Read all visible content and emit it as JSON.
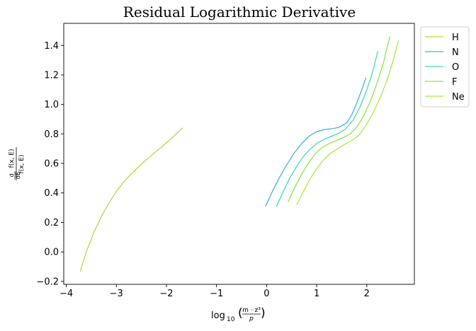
{
  "chart_data": {
    "type": "line",
    "title": "Residual Logarithmic Derivative",
    "xlabel": {
      "base": "log",
      "sub": "10",
      "num": "m · z³",
      "den": "p"
    },
    "ylabel": {
      "num": "d",
      "den": "dE",
      "func": "f(x, E)"
    },
    "xlim": [
      -4.05,
      2.95
    ],
    "ylim": [
      -0.22,
      1.55
    ],
    "xticks": [
      -4,
      -3,
      -2,
      -1,
      0,
      1,
      2
    ],
    "xtick_labels": [
      "−4",
      "−3",
      "−2",
      "−1",
      "0",
      "1",
      "2"
    ],
    "yticks": [
      -0.2,
      0.0,
      0.2,
      0.4,
      0.6,
      0.8,
      1.0,
      1.2,
      1.4
    ],
    "ytick_labels": [
      "−0.2",
      "0.0",
      "0.2",
      "0.4",
      "0.6",
      "0.8",
      "1.0",
      "1.2",
      "1.4"
    ],
    "grid": false,
    "legend_position": "outside-top-right",
    "series": [
      {
        "name": "H",
        "color": "#a6cc0e",
        "points": [
          [
            -3.72,
            -0.13
          ],
          [
            -3.6,
            0.0
          ],
          [
            -3.45,
            0.13
          ],
          [
            -3.3,
            0.24
          ],
          [
            -3.15,
            0.33
          ],
          [
            -3.0,
            0.41
          ],
          [
            -2.85,
            0.475
          ],
          [
            -2.7,
            0.53
          ],
          [
            -2.5,
            0.595
          ],
          [
            -2.3,
            0.655
          ],
          [
            -2.1,
            0.71
          ],
          [
            -1.9,
            0.77
          ],
          [
            -1.68,
            0.84
          ]
        ]
      },
      {
        "name": "N",
        "color": "#1a9ad6",
        "points": [
          [
            -0.02,
            0.31
          ],
          [
            0.1,
            0.4
          ],
          [
            0.25,
            0.5
          ],
          [
            0.4,
            0.59
          ],
          [
            0.55,
            0.67
          ],
          [
            0.7,
            0.735
          ],
          [
            0.85,
            0.785
          ],
          [
            1.0,
            0.815
          ],
          [
            1.15,
            0.83
          ],
          [
            1.3,
            0.835
          ],
          [
            1.45,
            0.845
          ],
          [
            1.6,
            0.875
          ],
          [
            1.7,
            0.93
          ],
          [
            1.8,
            1.01
          ],
          [
            1.9,
            1.1
          ],
          [
            1.98,
            1.18
          ]
        ]
      },
      {
        "name": "O",
        "color": "#14d1a4",
        "points": [
          [
            0.2,
            0.31
          ],
          [
            0.32,
            0.4
          ],
          [
            0.46,
            0.5
          ],
          [
            0.6,
            0.58
          ],
          [
            0.74,
            0.65
          ],
          [
            0.88,
            0.7
          ],
          [
            1.02,
            0.74
          ],
          [
            1.16,
            0.765
          ],
          [
            1.3,
            0.785
          ],
          [
            1.44,
            0.805
          ],
          [
            1.58,
            0.835
          ],
          [
            1.72,
            0.89
          ],
          [
            1.86,
            0.98
          ],
          [
            1.98,
            1.08
          ],
          [
            2.1,
            1.2
          ],
          [
            2.22,
            1.36
          ]
        ]
      },
      {
        "name": "F",
        "color": "#6ee01c",
        "points": [
          [
            0.43,
            0.34
          ],
          [
            0.55,
            0.43
          ],
          [
            0.69,
            0.52
          ],
          [
            0.83,
            0.6
          ],
          [
            0.97,
            0.665
          ],
          [
            1.11,
            0.71
          ],
          [
            1.25,
            0.735
          ],
          [
            1.39,
            0.755
          ],
          [
            1.53,
            0.775
          ],
          [
            1.67,
            0.8
          ],
          [
            1.81,
            0.85
          ],
          [
            1.95,
            0.93
          ],
          [
            2.08,
            1.03
          ],
          [
            2.2,
            1.14
          ],
          [
            2.33,
            1.28
          ],
          [
            2.46,
            1.46
          ]
        ]
      },
      {
        "name": "Ne",
        "color": "#90e614",
        "points": [
          [
            0.6,
            0.32
          ],
          [
            0.72,
            0.4
          ],
          [
            0.86,
            0.49
          ],
          [
            1.0,
            0.565
          ],
          [
            1.14,
            0.625
          ],
          [
            1.28,
            0.67
          ],
          [
            1.42,
            0.7
          ],
          [
            1.56,
            0.73
          ],
          [
            1.7,
            0.755
          ],
          [
            1.84,
            0.79
          ],
          [
            1.98,
            0.855
          ],
          [
            2.12,
            0.94
          ],
          [
            2.26,
            1.04
          ],
          [
            2.4,
            1.16
          ],
          [
            2.52,
            1.29
          ],
          [
            2.63,
            1.43
          ]
        ]
      }
    ]
  }
}
